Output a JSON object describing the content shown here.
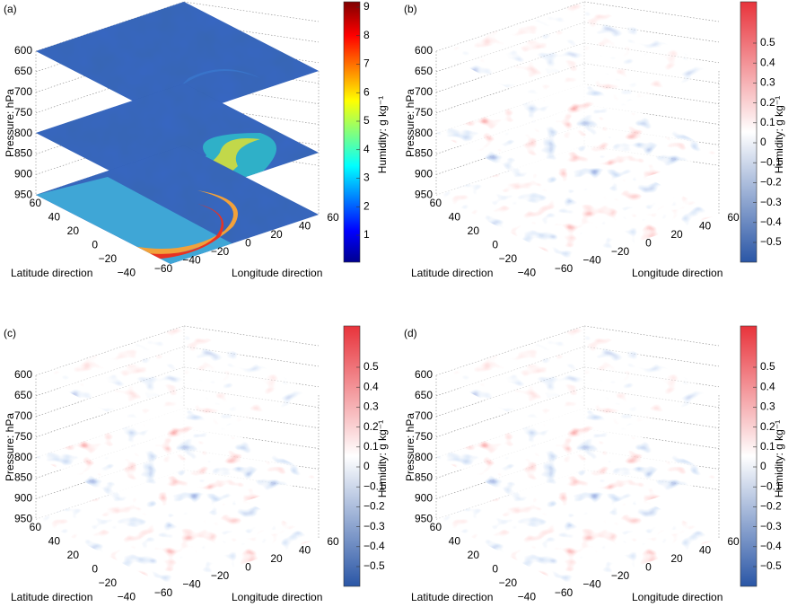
{
  "panels": [
    {
      "label": "(a)",
      "pressure_label": "Pressure: hPa",
      "pressure_ticks": [
        "600",
        "650",
        "700",
        "750",
        "800",
        "850",
        "900",
        "950"
      ],
      "latitude_label": "Latitude direction",
      "latitude_ticks": [
        "60",
        "40",
        "20",
        "0",
        "−20",
        "−40"
      ],
      "longitude_label": "Longitude direction",
      "longitude_ticks": [
        "−60",
        "−40",
        "−20",
        "0",
        "20",
        "40",
        "60"
      ],
      "colorbar_label": "Humidity: g kg⁻¹",
      "colorbar_ticks": [
        "1",
        "2",
        "3",
        "4",
        "5",
        "6",
        "7",
        "8",
        "9"
      ]
    },
    {
      "label": "(b)",
      "pressure_label": "Pressure: hPa",
      "pressure_ticks": [
        "600",
        "650",
        "700",
        "750",
        "800",
        "850",
        "900",
        "950"
      ],
      "latitude_label": "Latitude direction",
      "latitude_ticks": [
        "60",
        "40",
        "20",
        "0",
        "−20",
        "−40"
      ],
      "longitude_label": "Longitude direction",
      "longitude_ticks": [
        "−60",
        "−40",
        "−20",
        "0",
        "20",
        "40",
        "60"
      ],
      "colorbar_label": "Humidity: g kg⁻¹",
      "colorbar_ticks": [
        "−0.5",
        "−0.4",
        "−0.3",
        "−0.2",
        "−0.1",
        "0",
        "0.1",
        "0.2",
        "0.3",
        "0.4",
        "0.5"
      ]
    },
    {
      "label": "(c)",
      "pressure_label": "Pressure: hPa",
      "pressure_ticks": [
        "600",
        "650",
        "700",
        "750",
        "800",
        "850",
        "900",
        "950"
      ],
      "latitude_label": "Latitude direction",
      "latitude_ticks": [
        "60",
        "40",
        "20",
        "0",
        "−20",
        "−40"
      ],
      "longitude_label": "Longitude direction",
      "longitude_ticks": [
        "−60",
        "−40",
        "−20",
        "0",
        "20",
        "40",
        "60"
      ],
      "colorbar_label": "Humidity: g kg⁻¹",
      "colorbar_ticks": [
        "−0.5",
        "−0.4",
        "−0.3",
        "−0.2",
        "−0.1",
        "0",
        "0.1",
        "0.2",
        "0.3",
        "0.4",
        "0.5"
      ]
    },
    {
      "label": "(d)",
      "pressure_label": "Pressure: hPa",
      "pressure_ticks": [
        "600",
        "650",
        "700",
        "750",
        "800",
        "850",
        "900",
        "950"
      ],
      "latitude_label": "Latitude direction",
      "latitude_ticks": [
        "60",
        "40",
        "20",
        "0",
        "−20",
        "−40"
      ],
      "longitude_label": "Longitude direction",
      "longitude_ticks": [
        "−60",
        "−40",
        "−20",
        "0",
        "20",
        "40",
        "60"
      ],
      "colorbar_label": "Humidity: g kg⁻¹",
      "colorbar_ticks": [
        "−0.5",
        "−0.4",
        "−0.3",
        "−0.2",
        "−0.1",
        "0",
        "0.1",
        "0.2",
        "0.3",
        "0.4",
        "0.5"
      ]
    }
  ]
}
